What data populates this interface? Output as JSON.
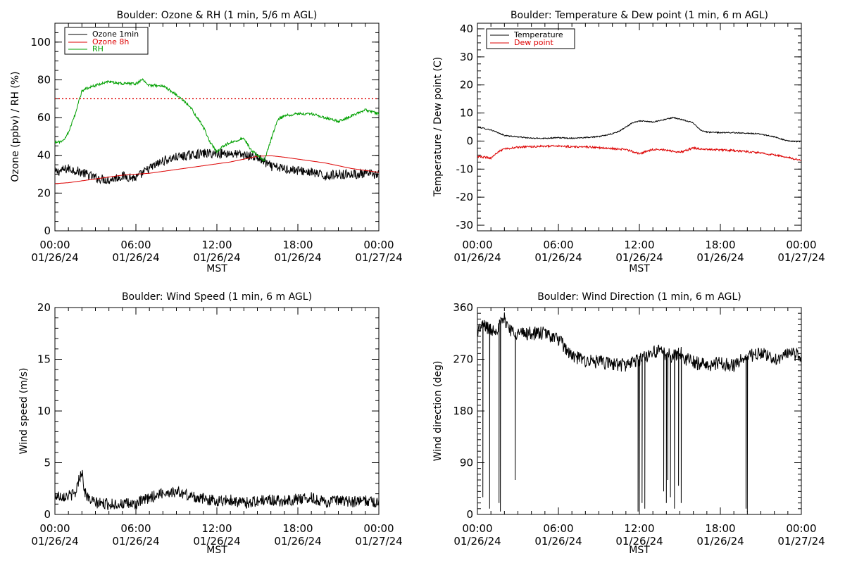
{
  "panels": [
    {
      "title": "Boulder: Ozone & RH (1 min, 5/6 m AGL)",
      "ylabel": "Ozone (ppbv) / RH (%)",
      "xlabel": "MST"
    },
    {
      "title": "Boulder: Temperature & Dew point (1 min, 6 m AGL)",
      "ylabel": "Temperature / Dew point (C)",
      "xlabel": "MST"
    },
    {
      "title": "Boulder: Wind Speed (1 min, 6 m AGL)",
      "ylabel": "Wind speed (m/s)",
      "xlabel": "MST"
    },
    {
      "title": "Boulder: Wind Direction (1 min, 6 m AGL)",
      "ylabel": "Wind direction (deg)",
      "xlabel": "MST"
    }
  ],
  "x_tick_times": [
    "00:00",
    "06:00",
    "12:00",
    "18:00",
    "00:00"
  ],
  "x_tick_dates": [
    "01/26/24",
    "01/26/24",
    "01/26/24",
    "01/26/24",
    "01/27/24"
  ],
  "chart_data": [
    {
      "type": "line",
      "title": "Boulder: Ozone & RH (1 min, 5/6 m AGL)",
      "xlabel": "MST",
      "ylabel": "Ozone (ppbv) / RH (%)",
      "x_unit": "hours since 00:00 01/26/24",
      "xlim": [
        0,
        24
      ],
      "ylim": [
        0,
        110
      ],
      "yticks": [
        0,
        20,
        40,
        60,
        80,
        100
      ],
      "legend": "top-left",
      "reference_line": {
        "y": 70,
        "color": "#dd0000",
        "style": "dotted"
      },
      "series": [
        {
          "name": "Ozone 1min",
          "color": "#000000",
          "noise": 2.5,
          "x": [
            0,
            1,
            2,
            3,
            4,
            5,
            6,
            7,
            8,
            9,
            10,
            11,
            12,
            13,
            14,
            15,
            16,
            17,
            18,
            19,
            20,
            21,
            22,
            23,
            24
          ],
          "y": [
            31,
            33,
            31,
            28,
            27,
            29,
            28,
            33,
            37,
            39,
            40,
            41,
            41,
            41,
            40,
            39,
            34,
            33,
            32,
            31,
            29,
            30,
            30,
            30,
            30
          ]
        },
        {
          "name": "Ozone 8h",
          "color": "#dd0000",
          "noise": 0,
          "x": [
            0,
            1,
            2,
            3,
            4,
            5,
            6,
            7,
            8,
            9,
            10,
            11,
            12,
            13,
            14,
            15,
            16,
            17,
            18,
            19,
            20,
            21,
            22,
            23,
            24
          ],
          "y": [
            25,
            25.5,
            26.5,
            27.5,
            28.5,
            29.5,
            30,
            30.5,
            31.5,
            32.5,
            33.5,
            34.5,
            35.5,
            36.5,
            38,
            39.5,
            39.8,
            39,
            38,
            37,
            36,
            34.5,
            33,
            32,
            31
          ]
        },
        {
          "name": "RH",
          "color": "#00a000",
          "noise": 0.7,
          "x": [
            0,
            0.5,
            1,
            1.5,
            2,
            2.5,
            3,
            4,
            5,
            6,
            6.5,
            7,
            8,
            9,
            10,
            11,
            11.5,
            12,
            12.5,
            13,
            14,
            14.5,
            15,
            15.5,
            16,
            16.5,
            17,
            18,
            19,
            20,
            21,
            22,
            23,
            24
          ],
          "y": [
            47,
            47,
            52,
            62,
            74,
            76,
            77,
            79,
            78,
            78,
            80,
            77,
            77,
            72,
            66,
            55,
            47,
            42,
            45,
            47,
            49,
            43,
            40,
            37,
            48,
            59,
            61,
            62,
            62,
            60,
            58,
            61,
            64,
            62
          ]
        }
      ]
    },
    {
      "type": "line",
      "title": "Boulder: Temperature & Dew point (1 min, 6 m AGL)",
      "xlabel": "MST",
      "ylabel": "Temperature / Dew point (C)",
      "x_unit": "hours since 00:00 01/26/24",
      "xlim": [
        0,
        24
      ],
      "ylim": [
        -32,
        42
      ],
      "yticks": [
        -30,
        -20,
        -10,
        0,
        10,
        20,
        30,
        40
      ],
      "legend": "top-left",
      "series": [
        {
          "name": "Temperature",
          "color": "#000000",
          "noise": 0.2,
          "x": [
            0,
            1,
            2,
            3,
            4,
            5,
            6,
            7,
            8,
            9,
            10,
            10.5,
            11,
            11.5,
            12,
            13,
            14,
            14.5,
            15,
            16,
            16.5,
            17,
            18,
            19,
            20,
            21,
            22,
            23,
            24
          ],
          "y": [
            5,
            4,
            2,
            1.5,
            1,
            1,
            1.2,
            1,
            1.3,
            1.6,
            2.6,
            3.5,
            5,
            6.5,
            7.2,
            6.8,
            7.8,
            8.4,
            7.8,
            6.5,
            4,
            3.2,
            3,
            3,
            2.8,
            2.5,
            1.5,
            0,
            -0.2
          ]
        },
        {
          "name": "Dew point",
          "color": "#dd0000",
          "noise": 0.35,
          "x": [
            0,
            1,
            1.5,
            2,
            3,
            4,
            5,
            6,
            7,
            8,
            9,
            10,
            11,
            12,
            13,
            14,
            15,
            16,
            17,
            18,
            19,
            20,
            21,
            22,
            23,
            24
          ],
          "y": [
            -5.5,
            -6,
            -4,
            -2.8,
            -2.2,
            -2,
            -1.8,
            -1.8,
            -2,
            -2,
            -2.4,
            -2.7,
            -3,
            -4.5,
            -3,
            -3.2,
            -4,
            -2.5,
            -3,
            -3.2,
            -3.4,
            -3.8,
            -4.2,
            -5,
            -5.8,
            -7
          ]
        }
      ]
    },
    {
      "type": "line",
      "title": "Boulder: Wind Speed (1 min, 6 m AGL)",
      "xlabel": "MST",
      "ylabel": "Wind speed (m/s)",
      "x_unit": "hours since 00:00 01/26/24",
      "xlim": [
        0,
        24
      ],
      "ylim": [
        0,
        20
      ],
      "yticks": [
        0,
        5,
        10,
        15,
        20
      ],
      "series": [
        {
          "name": "Wind speed",
          "color": "#000000",
          "noise": 0.55,
          "min": 0,
          "x": [
            0,
            1,
            1.5,
            1.8,
            2,
            2.2,
            2.5,
            3,
            4,
            5,
            6,
            7,
            8,
            9,
            10,
            11,
            12,
            13,
            14,
            15,
            16,
            17,
            18,
            19,
            20,
            21,
            22,
            23,
            24
          ],
          "y": [
            1.8,
            1.8,
            2,
            3.5,
            4.2,
            2.2,
            1.5,
            1.1,
            1.0,
            1.0,
            1.0,
            1.6,
            2.1,
            2.2,
            1.8,
            1.5,
            1.3,
            1.4,
            1.1,
            1.3,
            1.4,
            1.3,
            1.5,
            1.6,
            1.2,
            1.3,
            1.2,
            1.3,
            1.2
          ]
        }
      ]
    },
    {
      "type": "line",
      "title": "Boulder: Wind Direction (1 min, 6 m AGL)",
      "xlabel": "MST",
      "ylabel": "Wind direction (deg)",
      "x_unit": "hours since 00:00 01/26/24",
      "xlim": [
        0,
        24
      ],
      "ylim": [
        0,
        360
      ],
      "yticks": [
        0,
        90,
        180,
        270,
        360
      ],
      "series": [
        {
          "name": "Wind direction",
          "color": "#000000",
          "noise": 12,
          "min": 0,
          "max": 360,
          "x": [
            0,
            0.5,
            1,
            1.5,
            2,
            2.5,
            3,
            4,
            5,
            6,
            6.5,
            7,
            8,
            9,
            10,
            11,
            12,
            12.5,
            13,
            14,
            14.5,
            15,
            15.5,
            16,
            17,
            18,
            19,
            20,
            21,
            22,
            23,
            24
          ],
          "y": [
            320,
            330,
            320,
            325,
            340,
            320,
            315,
            315,
            315,
            305,
            290,
            275,
            268,
            265,
            262,
            260,
            270,
            275,
            285,
            280,
            275,
            282,
            270,
            265,
            260,
            263,
            260,
            275,
            280,
            270,
            280,
            275
          ],
          "dropouts": [
            {
              "x": 0.4,
              "y": 30
            },
            {
              "x": 0.9,
              "y": 10
            },
            {
              "x": 1.6,
              "y": 20
            },
            {
              "x": 1.7,
              "y": 5
            },
            {
              "x": 2.8,
              "y": 60
            },
            {
              "x": 11.9,
              "y": 5
            },
            {
              "x": 12.0,
              "y": 10
            },
            {
              "x": 12.2,
              "y": 20
            },
            {
              "x": 12.4,
              "y": 10
            },
            {
              "x": 13.8,
              "y": 40
            },
            {
              "x": 14.0,
              "y": 20
            },
            {
              "x": 14.1,
              "y": 60
            },
            {
              "x": 14.3,
              "y": 30
            },
            {
              "x": 14.6,
              "y": 10
            },
            {
              "x": 14.9,
              "y": 50
            },
            {
              "x": 15.1,
              "y": 20
            },
            {
              "x": 19.9,
              "y": 10
            },
            {
              "x": 20.0,
              "y": 5
            }
          ]
        }
      ]
    }
  ]
}
